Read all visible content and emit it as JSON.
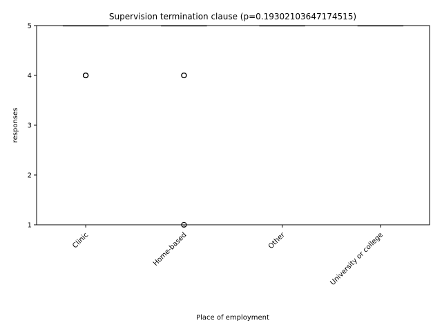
{
  "chart_data": {
    "type": "box",
    "title": "Supervision termination clause (p=0.19302103647174515)",
    "xlabel": "Place of employment",
    "ylabel": "responses",
    "categories": [
      "Clinic",
      "Home-based",
      "Other",
      "University or college"
    ],
    "ylim": [
      1,
      5
    ],
    "yticks": [
      "1",
      "2",
      "3",
      "4",
      "5"
    ],
    "ytick_values": [
      1,
      2,
      3,
      4,
      5
    ],
    "boxes": [
      {
        "category": "Clinic",
        "q1": 5,
        "median": 5,
        "q3": 5,
        "whisker_low": 5,
        "whisker_high": 5,
        "outliers": [
          4,
          4,
          4
        ]
      },
      {
        "category": "Home-based",
        "q1": 5,
        "median": 5,
        "q3": 5,
        "whisker_low": 5,
        "whisker_high": 5,
        "outliers": [
          4,
          4,
          1
        ]
      },
      {
        "category": "Other",
        "q1": 5,
        "median": 5,
        "q3": 5,
        "whisker_low": 5,
        "whisker_high": 5,
        "outliers": []
      },
      {
        "category": "University or college",
        "q1": 5,
        "median": 5,
        "q3": 5,
        "whisker_low": 5,
        "whisker_high": 5,
        "outliers": []
      }
    ],
    "grid": false,
    "colors": {
      "box": "#000000",
      "outlier_edge": "#000000",
      "background": "#ffffff"
    }
  }
}
